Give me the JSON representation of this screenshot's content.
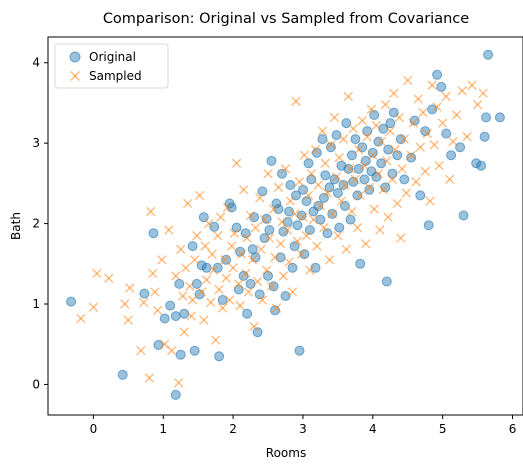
{
  "chart_data": {
    "type": "scatter",
    "title": "Comparison: Original vs Sampled from Covariance",
    "xlabel": "Rooms",
    "ylabel": "Bath",
    "xlim": [
      -0.65,
      6.15
    ],
    "ylim": [
      -0.38,
      4.32
    ],
    "xticks": [
      "0",
      "1",
      "2",
      "3",
      "4",
      "5",
      "6"
    ],
    "yticks": [
      "0",
      "1",
      "2",
      "3",
      "4"
    ],
    "grid": false,
    "legend_position": "top-left",
    "series": [
      {
        "name": "Original",
        "marker": "circle",
        "color": "#1f77b4",
        "points": [
          [
            -0.32,
            1.03
          ],
          [
            0.42,
            0.12
          ],
          [
            0.73,
            1.13
          ],
          [
            0.86,
            1.88
          ],
          [
            0.93,
            0.49
          ],
          [
            1.02,
            0.82
          ],
          [
            1.1,
            0.98
          ],
          [
            1.18,
            -0.13
          ],
          [
            1.18,
            0.85
          ],
          [
            1.23,
            1.25
          ],
          [
            1.25,
            0.37
          ],
          [
            1.3,
            0.88
          ],
          [
            1.42,
            1.72
          ],
          [
            1.45,
            0.42
          ],
          [
            1.48,
            1.25
          ],
          [
            1.52,
            1.12
          ],
          [
            1.55,
            1.48
          ],
          [
            1.58,
            2.08
          ],
          [
            1.62,
            1.45
          ],
          [
            1.73,
            1.96
          ],
          [
            1.78,
            1.45
          ],
          [
            1.8,
            0.35
          ],
          [
            1.85,
            1.05
          ],
          [
            1.9,
            1.55
          ],
          [
            1.95,
            2.25
          ],
          [
            1.98,
            2.2
          ],
          [
            2.05,
            1.95
          ],
          [
            2.08,
            1.18
          ],
          [
            2.1,
            1.65
          ],
          [
            2.15,
            1.35
          ],
          [
            2.18,
            1.88
          ],
          [
            2.2,
            0.88
          ],
          [
            2.25,
            1.25
          ],
          [
            2.28,
            1.68
          ],
          [
            2.3,
            2.08
          ],
          [
            2.32,
            1.58
          ],
          [
            2.35,
            0.65
          ],
          [
            2.38,
            1.12
          ],
          [
            2.42,
            2.4
          ],
          [
            2.45,
            1.82
          ],
          [
            2.48,
            2.06
          ],
          [
            2.5,
            1.35
          ],
          [
            2.52,
            1.92
          ],
          [
            2.55,
            2.78
          ],
          [
            2.58,
            1.22
          ],
          [
            2.6,
            0.92
          ],
          [
            2.62,
            2.25
          ],
          [
            2.65,
            2.18
          ],
          [
            2.68,
            1.58
          ],
          [
            2.7,
            2.62
          ],
          [
            2.72,
            1.9
          ],
          [
            2.75,
            1.1
          ],
          [
            2.78,
            2.02
          ],
          [
            2.8,
            2.15
          ],
          [
            2.82,
            2.48
          ],
          [
            2.85,
            1.45
          ],
          [
            2.88,
            1.72
          ],
          [
            2.9,
            2.35
          ],
          [
            2.92,
            1.98
          ],
          [
            2.95,
            0.42
          ],
          [
            2.98,
            2.1
          ],
          [
            3.0,
            2.42
          ],
          [
            3.02,
            1.62
          ],
          [
            3.05,
            2.28
          ],
          [
            3.08,
            2.75
          ],
          [
            3.1,
            1.92
          ],
          [
            3.12,
            2.55
          ],
          [
            3.15,
            2.15
          ],
          [
            3.18,
            1.45
          ],
          [
            3.2,
            2.88
          ],
          [
            3.22,
            2.22
          ],
          [
            3.25,
            2.05
          ],
          [
            3.28,
            3.05
          ],
          [
            3.3,
            2.32
          ],
          [
            3.32,
            2.6
          ],
          [
            3.35,
            1.88
          ],
          [
            3.38,
            2.45
          ],
          [
            3.4,
            2.95
          ],
          [
            3.42,
            2.12
          ],
          [
            3.45,
            2.55
          ],
          [
            3.48,
            3.1
          ],
          [
            3.5,
            2.38
          ],
          [
            3.52,
            1.95
          ],
          [
            3.55,
            2.72
          ],
          [
            3.58,
            2.48
          ],
          [
            3.6,
            2.22
          ],
          [
            3.62,
            3.25
          ],
          [
            3.65,
            2.68
          ],
          [
            3.68,
            2.05
          ],
          [
            3.7,
            2.85
          ],
          [
            3.72,
            2.52
          ],
          [
            3.75,
            3.05
          ],
          [
            3.78,
            2.35
          ],
          [
            3.8,
            2.68
          ],
          [
            3.82,
            1.5
          ],
          [
            3.85,
            2.95
          ],
          [
            3.88,
            2.55
          ],
          [
            3.9,
            2.78
          ],
          [
            3.92,
            3.15
          ],
          [
            3.95,
            2.42
          ],
          [
            3.98,
            2.65
          ],
          [
            4.0,
            2.88
          ],
          [
            4.02,
            3.35
          ],
          [
            4.05,
            2.58
          ],
          [
            4.08,
            3.02
          ],
          [
            4.12,
            2.75
          ],
          [
            4.15,
            3.18
          ],
          [
            4.18,
            2.45
          ],
          [
            4.2,
            1.28
          ],
          [
            4.22,
            2.92
          ],
          [
            4.25,
            3.25
          ],
          [
            4.28,
            2.62
          ],
          [
            4.3,
            3.38
          ],
          [
            4.35,
            2.85
          ],
          [
            4.4,
            3.05
          ],
          [
            4.45,
            2.55
          ],
          [
            4.55,
            2.82
          ],
          [
            4.6,
            3.28
          ],
          [
            4.68,
            2.35
          ],
          [
            4.75,
            3.15
          ],
          [
            4.8,
            1.98
          ],
          [
            4.85,
            3.42
          ],
          [
            4.92,
            3.85
          ],
          [
            4.98,
            3.7
          ],
          [
            5.05,
            3.12
          ],
          [
            5.12,
            2.85
          ],
          [
            5.25,
            2.95
          ],
          [
            5.3,
            2.1
          ],
          [
            5.48,
            2.75
          ],
          [
            5.55,
            2.72
          ],
          [
            5.6,
            3.08
          ],
          [
            5.62,
            3.32
          ],
          [
            5.65,
            4.1
          ],
          [
            5.82,
            3.32
          ]
        ]
      },
      {
        "name": "Sampled",
        "marker": "x",
        "color": "#ff7f0e",
        "points": [
          [
            -0.18,
            0.82
          ],
          [
            0.0,
            0.96
          ],
          [
            0.05,
            1.38
          ],
          [
            0.22,
            1.32
          ],
          [
            0.45,
            1.0
          ],
          [
            0.5,
            0.8
          ],
          [
            0.52,
            1.2
          ],
          [
            0.68,
            0.42
          ],
          [
            0.72,
            1.02
          ],
          [
            0.8,
            0.08
          ],
          [
            0.82,
            2.15
          ],
          [
            0.85,
            1.38
          ],
          [
            0.88,
            1.15
          ],
          [
            0.92,
            0.92
          ],
          [
            0.98,
            1.55
          ],
          [
            1.02,
            0.5
          ],
          [
            1.08,
            1.92
          ],
          [
            1.12,
            0.42
          ],
          [
            1.18,
            1.35
          ],
          [
            1.22,
            0.02
          ],
          [
            1.25,
            1.68
          ],
          [
            1.28,
            1.1
          ],
          [
            1.3,
            0.65
          ],
          [
            1.32,
            1.45
          ],
          [
            1.35,
            2.25
          ],
          [
            1.38,
            1.22
          ],
          [
            1.4,
            0.85
          ],
          [
            1.42,
            1.05
          ],
          [
            1.45,
            1.55
          ],
          [
            1.48,
            1.85
          ],
          [
            1.52,
            2.35
          ],
          [
            1.55,
            1.15
          ],
          [
            1.58,
            0.8
          ],
          [
            1.6,
            1.72
          ],
          [
            1.62,
            1.3
          ],
          [
            1.65,
            2.0
          ],
          [
            1.68,
            1.02
          ],
          [
            1.7,
            1.62
          ],
          [
            1.72,
            1.42
          ],
          [
            1.75,
            0.55
          ],
          [
            1.78,
            1.85
          ],
          [
            1.8,
            1.18
          ],
          [
            1.82,
            2.08
          ],
          [
            1.85,
            0.95
          ],
          [
            1.88,
            1.55
          ],
          [
            1.9,
            1.32
          ],
          [
            1.92,
            2.2
          ],
          [
            1.95,
            1.05
          ],
          [
            1.98,
            1.72
          ],
          [
            2.0,
            1.45
          ],
          [
            2.02,
            1.88
          ],
          [
            2.05,
            2.75
          ],
          [
            2.08,
            1.25
          ],
          [
            2.1,
            0.98
          ],
          [
            2.12,
            1.62
          ],
          [
            2.15,
            2.42
          ],
          [
            2.18,
            1.38
          ],
          [
            2.2,
            1.82
          ],
          [
            2.22,
            1.15
          ],
          [
            2.25,
            2.1
          ],
          [
            2.28,
            1.55
          ],
          [
            2.3,
            0.72
          ],
          [
            2.32,
            1.95
          ],
          [
            2.35,
            1.28
          ],
          [
            2.38,
            2.32
          ],
          [
            2.4,
            1.68
          ],
          [
            2.42,
            1.05
          ],
          [
            2.45,
            2.05
          ],
          [
            2.48,
            1.42
          ],
          [
            2.5,
            2.62
          ],
          [
            2.52,
            1.82
          ],
          [
            2.55,
            1.22
          ],
          [
            2.58,
            2.18
          ],
          [
            2.6,
            1.58
          ],
          [
            2.62,
            0.95
          ],
          [
            2.65,
            2.45
          ],
          [
            2.68,
            1.75
          ],
          [
            2.7,
            2.02
          ],
          [
            2.72,
            1.35
          ],
          [
            2.75,
            2.68
          ],
          [
            2.78,
            1.92
          ],
          [
            2.8,
            1.52
          ],
          [
            2.82,
            2.28
          ],
          [
            2.85,
            1.15
          ],
          [
            2.88,
            2.12
          ],
          [
            2.9,
            3.52
          ],
          [
            2.92,
            1.78
          ],
          [
            2.95,
            2.52
          ],
          [
            2.98,
            1.62
          ],
          [
            3.0,
            2.08
          ],
          [
            3.02,
            2.85
          ],
          [
            3.05,
            1.85
          ],
          [
            3.08,
            2.35
          ],
          [
            3.1,
            1.42
          ],
          [
            3.12,
            2.62
          ],
          [
            3.15,
            2.05
          ],
          [
            3.18,
            2.92
          ],
          [
            3.2,
            1.72
          ],
          [
            3.22,
            2.48
          ],
          [
            3.25,
            2.22
          ],
          [
            3.28,
            3.15
          ],
          [
            3.3,
            1.95
          ],
          [
            3.32,
            2.75
          ],
          [
            3.35,
            2.38
          ],
          [
            3.38,
            1.55
          ],
          [
            3.4,
            2.98
          ],
          [
            3.42,
            2.12
          ],
          [
            3.45,
            3.32
          ],
          [
            3.48,
            2.58
          ],
          [
            3.5,
            1.85
          ],
          [
            3.52,
            2.82
          ],
          [
            3.55,
            2.28
          ],
          [
            3.58,
            3.05
          ],
          [
            3.6,
            2.48
          ],
          [
            3.62,
            1.68
          ],
          [
            3.65,
            3.58
          ],
          [
            3.68,
            2.68
          ],
          [
            3.7,
            2.15
          ],
          [
            3.72,
            3.18
          ],
          [
            3.75,
            2.55
          ],
          [
            3.78,
            1.95
          ],
          [
            3.8,
            2.92
          ],
          [
            3.82,
            2.35
          ],
          [
            3.85,
            3.28
          ],
          [
            3.88,
            2.72
          ],
          [
            3.9,
            1.75
          ],
          [
            3.92,
            3.08
          ],
          [
            3.95,
            2.45
          ],
          [
            3.98,
            3.42
          ],
          [
            4.0,
            2.85
          ],
          [
            4.02,
            2.18
          ],
          [
            4.05,
            3.22
          ],
          [
            4.08,
            2.62
          ],
          [
            4.1,
            1.92
          ],
          [
            4.12,
            3.02
          ],
          [
            4.15,
            2.42
          ],
          [
            4.18,
            3.48
          ],
          [
            4.2,
            2.78
          ],
          [
            4.22,
            2.08
          ],
          [
            4.25,
            3.15
          ],
          [
            4.28,
            2.55
          ],
          [
            4.3,
            3.62
          ],
          [
            4.32,
            2.92
          ],
          [
            4.35,
            2.25
          ],
          [
            4.38,
            3.32
          ],
          [
            4.4,
            1.82
          ],
          [
            4.42,
            2.68
          ],
          [
            4.45,
            3.05
          ],
          [
            4.48,
            2.38
          ],
          [
            4.5,
            3.78
          ],
          [
            4.55,
            2.85
          ],
          [
            4.58,
            3.25
          ],
          [
            4.62,
            2.52
          ],
          [
            4.65,
            3.55
          ],
          [
            4.68,
            2.95
          ],
          [
            4.72,
            3.38
          ],
          [
            4.75,
            2.65
          ],
          [
            4.78,
            3.12
          ],
          [
            4.82,
            2.28
          ],
          [
            4.85,
            3.72
          ],
          [
            4.88,
            2.98
          ],
          [
            4.92,
            3.45
          ],
          [
            4.95,
            2.72
          ],
          [
            5.0,
            3.25
          ],
          [
            5.05,
            3.58
          ],
          [
            5.1,
            2.55
          ],
          [
            5.15,
            3.02
          ],
          [
            5.2,
            3.35
          ],
          [
            5.28,
            3.65
          ],
          [
            5.35,
            3.08
          ],
          [
            5.42,
            3.72
          ],
          [
            5.5,
            3.48
          ],
          [
            5.58,
            3.62
          ]
        ]
      }
    ]
  }
}
